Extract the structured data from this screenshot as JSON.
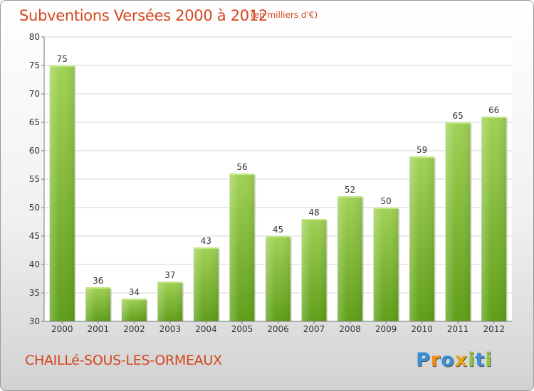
{
  "chart_data": {
    "type": "bar",
    "title": "Subventions Versées 2000 à 2012",
    "subtitle": "(en milliers d'€)",
    "categories": [
      "2000",
      "2001",
      "2002",
      "2003",
      "2004",
      "2005",
      "2006",
      "2007",
      "2008",
      "2009",
      "2010",
      "2011",
      "2012"
    ],
    "values": [
      75,
      36,
      34,
      37,
      43,
      56,
      45,
      48,
      52,
      50,
      59,
      65,
      66
    ],
    "ylim": [
      30,
      80
    ],
    "yticks": [
      30,
      35,
      40,
      45,
      50,
      55,
      60,
      65,
      70,
      75,
      80
    ],
    "grid": true,
    "bar_color_top": "#a1d256",
    "bar_color_bottom": "#5f9e18"
  },
  "footer": {
    "commune": "CHAILLé-SOUS-LES-ORMEAUX",
    "brand_letters": [
      "P",
      "r",
      "o",
      "x",
      "i",
      "t",
      "i"
    ],
    "brand_colors": [
      "#3a8fd6",
      "#f28c1e",
      "#3a8fd6",
      "#e8a317",
      "#8cc63f",
      "#3a8fd6",
      "#8cc63f"
    ]
  }
}
